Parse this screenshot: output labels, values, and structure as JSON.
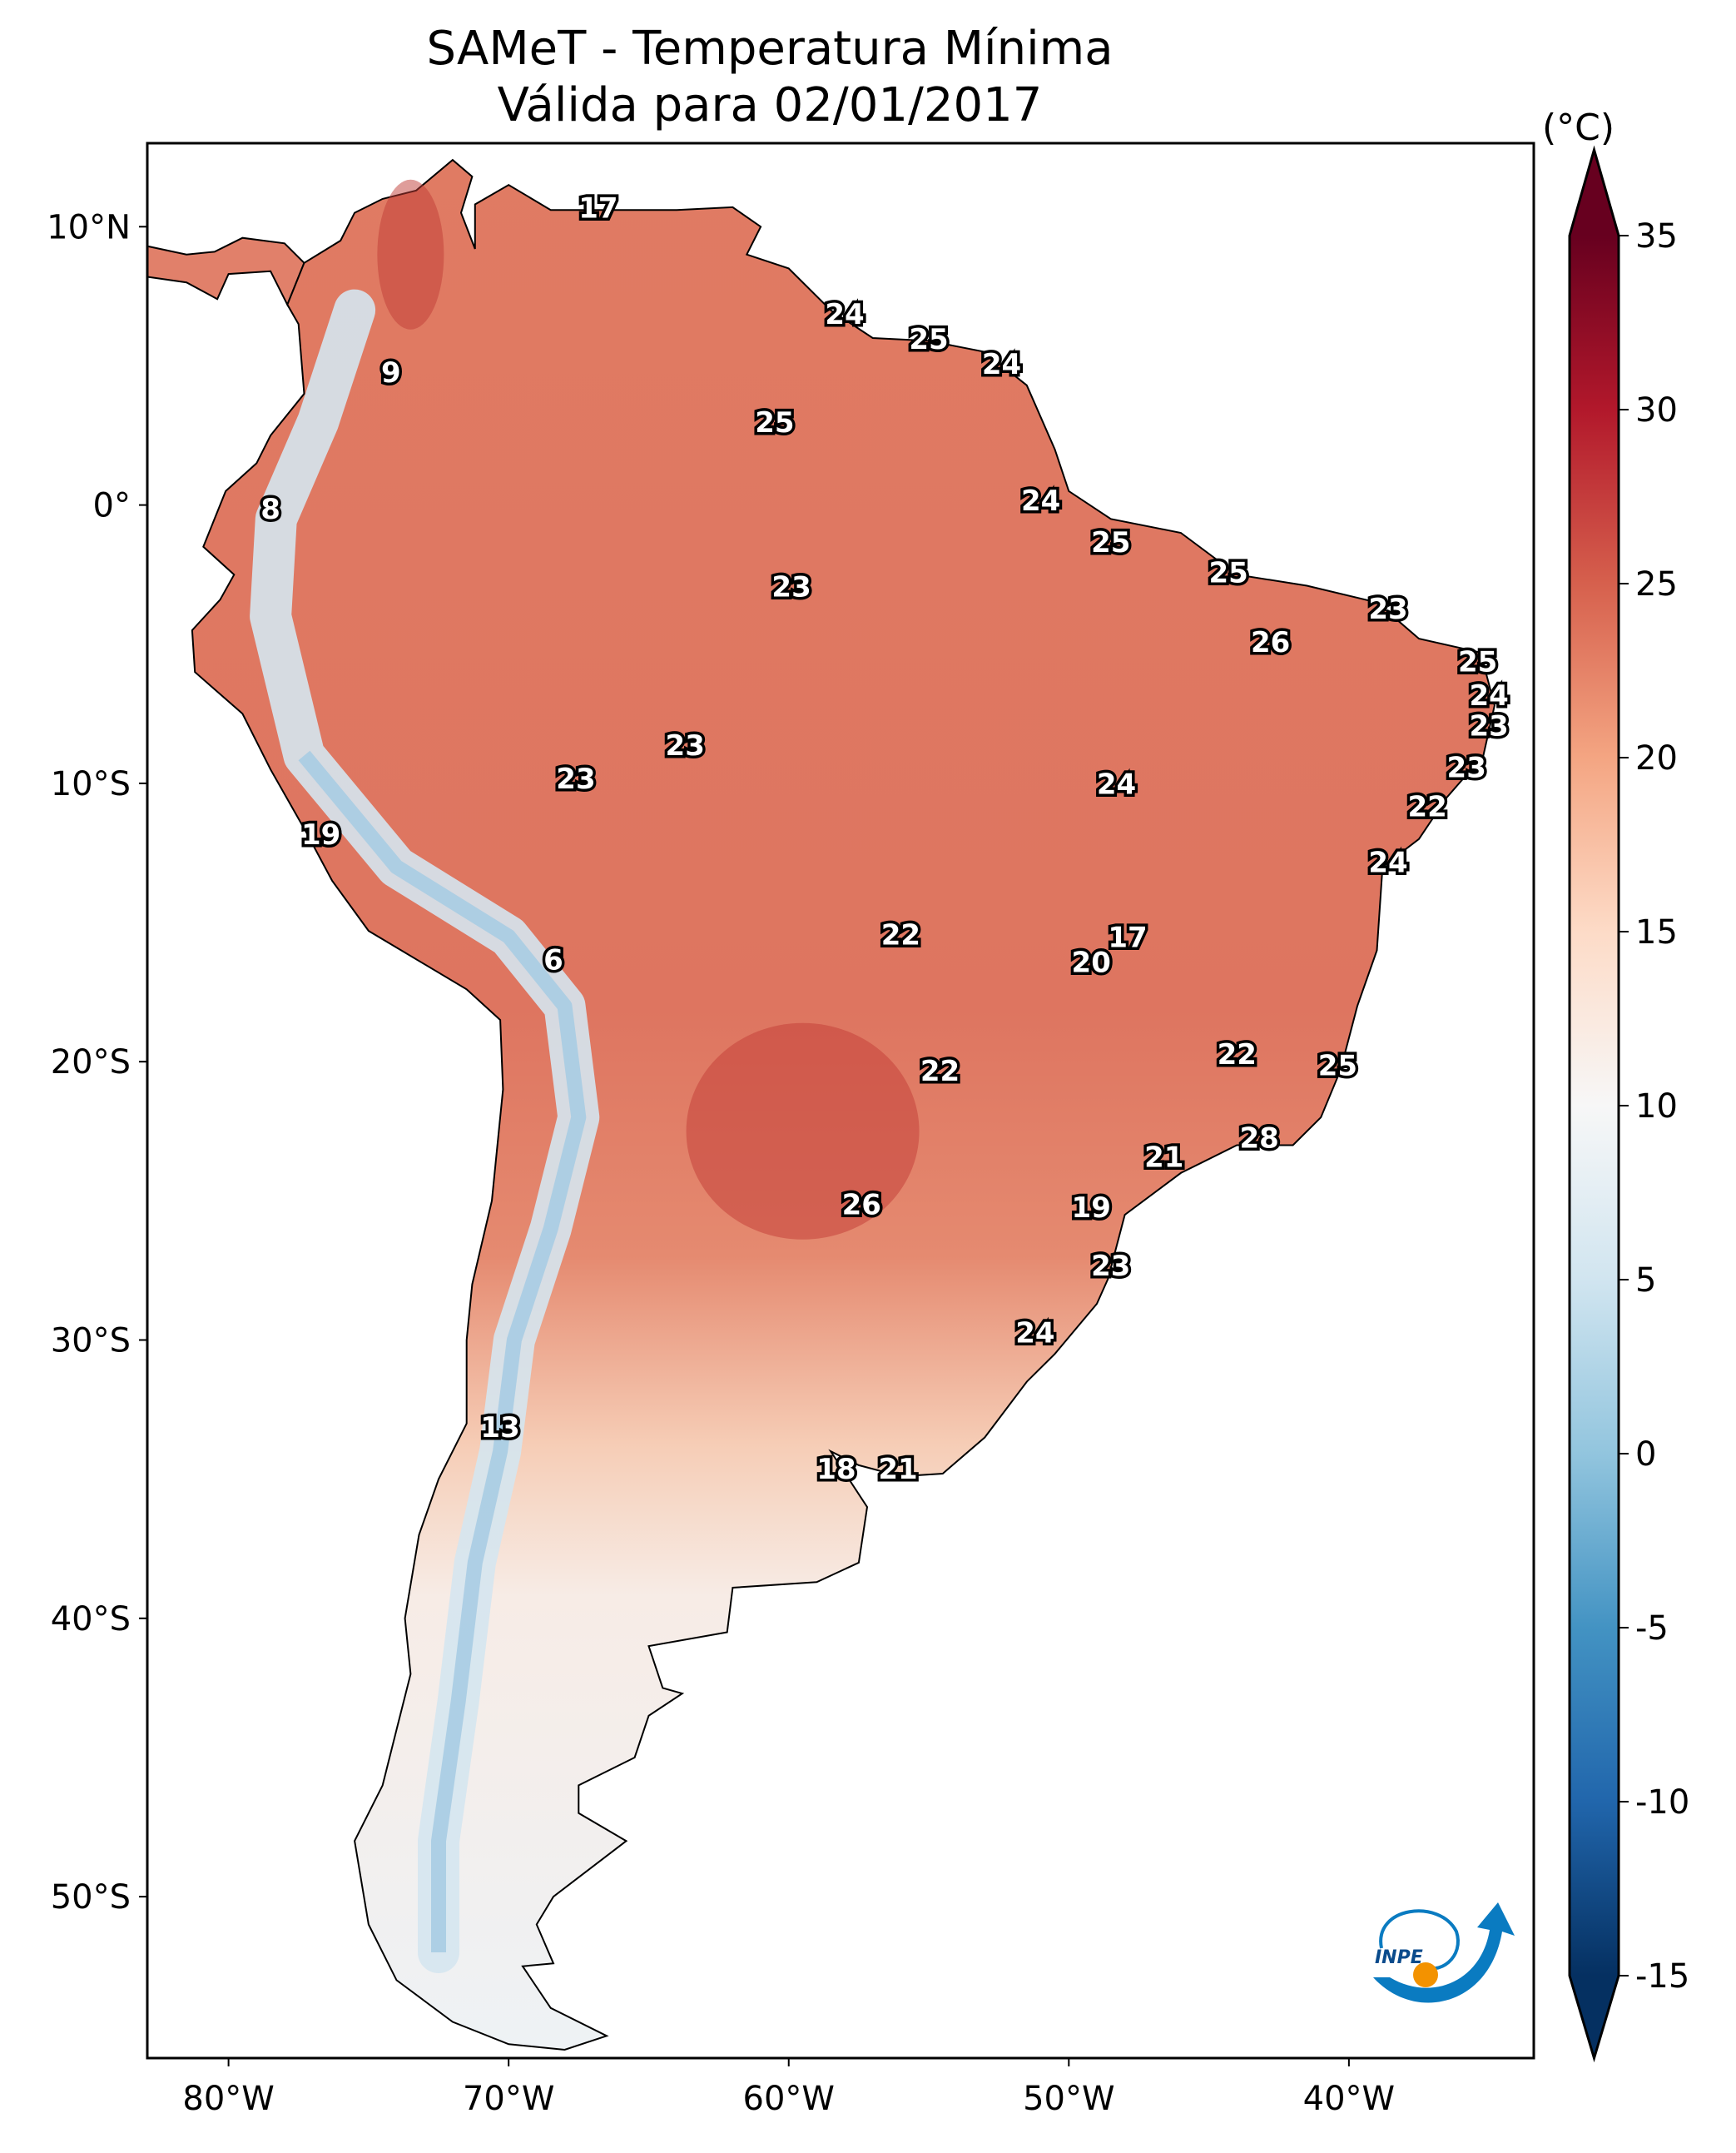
{
  "title": {
    "line1": "SAMeT - Temperatura Mínima",
    "line2": "Válida para 02/01/2017"
  },
  "map": {
    "extent_lon": [
      -82.9,
      -33.4
    ],
    "extent_lat": [
      -55.8,
      13.0
    ],
    "lat_ticks": [
      {
        "value": 10,
        "label": "10°N"
      },
      {
        "value": 0,
        "label": "0°"
      },
      {
        "value": -10,
        "label": "10°S"
      },
      {
        "value": -20,
        "label": "20°S"
      },
      {
        "value": -30,
        "label": "30°S"
      },
      {
        "value": -40,
        "label": "40°S"
      },
      {
        "value": -50,
        "label": "50°S"
      }
    ],
    "lon_ticks": [
      {
        "value": -80,
        "label": "80°W"
      },
      {
        "value": -70,
        "label": "70°W"
      },
      {
        "value": -60,
        "label": "60°W"
      },
      {
        "value": -50,
        "label": "50°W"
      },
      {
        "value": -40,
        "label": "40°W"
      }
    ],
    "station_labels": [
      {
        "lon": -66.8,
        "lat": 10.6,
        "value": "17"
      },
      {
        "lon": -74.2,
        "lat": 4.7,
        "value": "9"
      },
      {
        "lon": -78.5,
        "lat": -0.2,
        "value": "8"
      },
      {
        "lon": -58.0,
        "lat": 6.8,
        "value": "24"
      },
      {
        "lon": -55.0,
        "lat": 5.9,
        "value": "25"
      },
      {
        "lon": -52.4,
        "lat": 5.0,
        "value": "24"
      },
      {
        "lon": -60.5,
        "lat": 2.9,
        "value": "25"
      },
      {
        "lon": -51.0,
        "lat": 0.1,
        "value": "24"
      },
      {
        "lon": -48.5,
        "lat": -1.4,
        "value": "25"
      },
      {
        "lon": -44.3,
        "lat": -2.5,
        "value": "25"
      },
      {
        "lon": -59.9,
        "lat": -3.0,
        "value": "23"
      },
      {
        "lon": -38.6,
        "lat": -3.8,
        "value": "23"
      },
      {
        "lon": -42.8,
        "lat": -5.0,
        "value": "26"
      },
      {
        "lon": -35.4,
        "lat": -5.7,
        "value": "25"
      },
      {
        "lon": -35.0,
        "lat": -6.9,
        "value": "24"
      },
      {
        "lon": -35.0,
        "lat": -8.0,
        "value": "23"
      },
      {
        "lon": -63.7,
        "lat": -8.7,
        "value": "23"
      },
      {
        "lon": -67.6,
        "lat": -9.9,
        "value": "23"
      },
      {
        "lon": -48.3,
        "lat": -10.1,
        "value": "24"
      },
      {
        "lon": -35.8,
        "lat": -9.5,
        "value": "23"
      },
      {
        "lon": -37.2,
        "lat": -10.9,
        "value": "22"
      },
      {
        "lon": -76.7,
        "lat": -11.9,
        "value": "19"
      },
      {
        "lon": -38.6,
        "lat": -12.9,
        "value": "24"
      },
      {
        "lon": -56.0,
        "lat": -15.5,
        "value": "22"
      },
      {
        "lon": -47.9,
        "lat": -15.6,
        "value": "17"
      },
      {
        "lon": -68.4,
        "lat": -16.4,
        "value": "6"
      },
      {
        "lon": -49.2,
        "lat": -16.5,
        "value": "20"
      },
      {
        "lon": -44.0,
        "lat": -19.8,
        "value": "22"
      },
      {
        "lon": -40.4,
        "lat": -20.2,
        "value": "25"
      },
      {
        "lon": -54.6,
        "lat": -20.4,
        "value": "22"
      },
      {
        "lon": -43.2,
        "lat": -22.8,
        "value": "28"
      },
      {
        "lon": -46.6,
        "lat": -23.5,
        "value": "21"
      },
      {
        "lon": -57.4,
        "lat": -25.2,
        "value": "26"
      },
      {
        "lon": -49.2,
        "lat": -25.3,
        "value": "19"
      },
      {
        "lon": -48.5,
        "lat": -27.4,
        "value": "23"
      },
      {
        "lon": -51.2,
        "lat": -29.8,
        "value": "24"
      },
      {
        "lon": -70.3,
        "lat": -33.2,
        "value": "13"
      },
      {
        "lon": -58.3,
        "lat": -34.7,
        "value": "18"
      },
      {
        "lon": -56.1,
        "lat": -34.7,
        "value": "21"
      }
    ]
  },
  "colorbar": {
    "unit": "(°C)",
    "min": -15,
    "max": 35,
    "extend": "both",
    "colormap": "RdBu_r",
    "ticks": [
      "35",
      "30",
      "25",
      "20",
      "15",
      "10",
      "5",
      "0",
      "-5",
      "-10",
      "-15"
    ],
    "colors": [
      "#053061",
      "#2166ac",
      "#4393c3",
      "#92c5de",
      "#d1e5f0",
      "#f7f7f7",
      "#fddbc7",
      "#f4a582",
      "#d6604d",
      "#b2182b",
      "#67001f"
    ]
  },
  "logo": {
    "text": "INPE",
    "colors": [
      "#0a7bc1",
      "#f39200"
    ]
  }
}
